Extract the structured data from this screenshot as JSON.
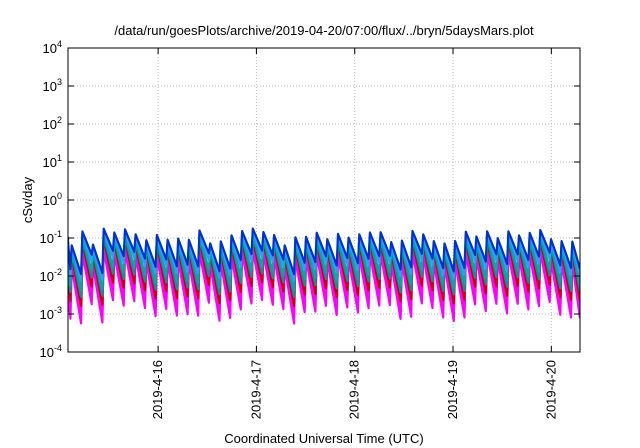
{
  "chart_data": {
    "type": "line",
    "title": "/data/run/goesPlots/archive/2019-04-20/07:00/flux/../bryn/5daysMars.plot",
    "xlabel": "Coordinated Universal Time (UTC)",
    "ylabel": "cSv/day",
    "yscale": "log",
    "ylim": [
      0.0001,
      10000
    ],
    "xlim": [
      "2019-04-15 02:00",
      "2019-04-20 07:00"
    ],
    "grid": true,
    "legend": "none",
    "y_ticks": [
      {
        "mant": "10",
        "exp": "-4"
      },
      {
        "mant": "10",
        "exp": "-3"
      },
      {
        "mant": "10",
        "exp": "-2"
      },
      {
        "mant": "10",
        "exp": "-1"
      },
      {
        "mant": "10",
        "exp": "0"
      },
      {
        "mant": "10",
        "exp": "1"
      },
      {
        "mant": "10",
        "exp": "2"
      },
      {
        "mant": "10",
        "exp": "3"
      },
      {
        "mant": "10",
        "exp": "4"
      }
    ],
    "x_ticks": [
      "2019-4-16",
      "2019-4-17",
      "2019-4-18",
      "2019-4-19",
      "2019-4-20"
    ],
    "sawtooth": {
      "period_hours": 2.6,
      "ramp_fraction": 0.88
    },
    "series": [
      {
        "color": "#ff00ff",
        "peak": 0.03,
        "trough": 0.0012
      },
      {
        "color": "#ff00ff",
        "peak": 0.04,
        "trough": 0.0018
      },
      {
        "color": "#ff00ff",
        "peak": 0.05,
        "trough": 0.0026
      },
      {
        "color": "#cc0000",
        "peak": 0.06,
        "trough": 0.0035
      },
      {
        "color": "#009999",
        "peak": 0.072,
        "trough": 0.006
      },
      {
        "color": "#00aaaa",
        "peak": 0.085,
        "trough": 0.009
      },
      {
        "color": "#3399ff",
        "peak": 0.095,
        "trough": 0.016
      },
      {
        "color": "#0033cc",
        "peak": 0.11,
        "trough": 0.024
      }
    ]
  }
}
